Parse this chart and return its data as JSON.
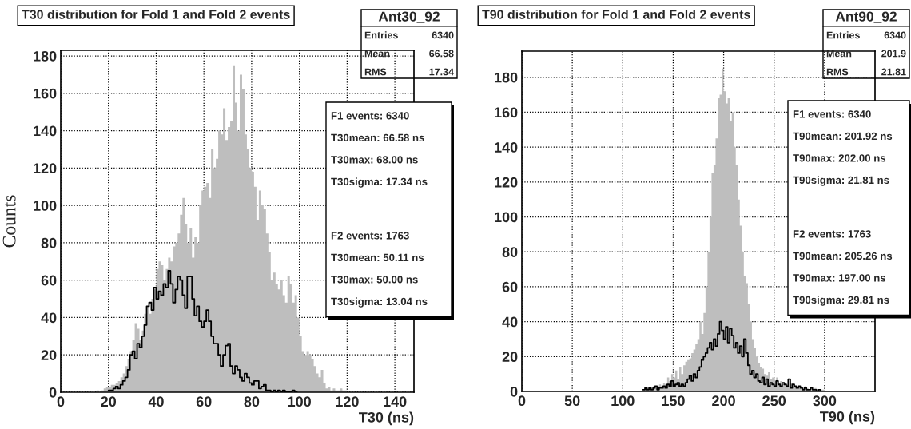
{
  "chart_data": [
    {
      "type": "histogram",
      "title": "T30 distribution for Fold 1 and Fold 2 events",
      "xlabel": "T30 (ns)",
      "ylabel": "Counts",
      "xlim": [
        0,
        148
      ],
      "ylim": [
        0,
        183
      ],
      "xticks": [
        0,
        20,
        40,
        60,
        80,
        100,
        120,
        140
      ],
      "yticks": [
        0,
        20,
        40,
        60,
        80,
        100,
        120,
        140,
        160,
        180
      ],
      "grid": true,
      "annotations": [
        "Ant30_92",
        "Entries 6340",
        "Mean 66.58",
        "RMS 17.34",
        "F1 events: 6340",
        "T30mean: 66.58 ns",
        "T30max: 68.00 ns",
        "T30sigma: 17.34 ns",
        "F2 events: 1763",
        "T30mean: 50.11 ns",
        "T30max: 50.00 ns",
        "T30sigma: 13.04 ns"
      ],
      "color": "#bebebe",
      "bins": [
        15,
        16,
        17,
        18,
        19,
        20,
        21,
        22,
        23,
        24,
        25,
        26,
        27,
        28,
        29,
        30,
        31,
        32,
        33,
        34,
        35,
        36,
        37,
        38,
        39,
        40,
        41,
        42,
        43,
        44,
        45,
        46,
        47,
        48,
        49,
        50,
        51,
        52,
        53,
        54,
        55,
        56,
        57,
        58,
        59,
        60,
        61,
        62,
        63,
        64,
        65,
        66,
        67,
        68,
        69,
        70,
        71,
        72,
        73,
        74,
        75,
        76,
        77,
        78,
        79,
        80,
        81,
        82,
        83,
        84,
        85,
        86,
        87,
        88,
        89,
        90,
        91,
        92,
        93,
        94,
        95,
        96,
        97,
        98,
        99,
        100,
        101,
        102,
        103,
        104,
        105,
        106,
        107,
        108,
        109,
        110,
        111,
        112,
        113,
        114,
        115,
        116,
        117,
        118,
        119,
        120
      ],
      "values": [
        1,
        0,
        1,
        2,
        3,
        3,
        4,
        4,
        5,
        6,
        8,
        10,
        14,
        18,
        22,
        28,
        37,
        34,
        28,
        33,
        42,
        46,
        42,
        50,
        55,
        66,
        70,
        68,
        60,
        66,
        72,
        70,
        78,
        80,
        85,
        95,
        104,
        90,
        80,
        88,
        72,
        83,
        80,
        100,
        108,
        110,
        112,
        104,
        130,
        120,
        125,
        140,
        138,
        152,
        135,
        142,
        145,
        175,
        155,
        140,
        170,
        162,
        138,
        130,
        120,
        118,
        110,
        92,
        108,
        100,
        98,
        85,
        75,
        60,
        64,
        58,
        55,
        60,
        52,
        48,
        62,
        58,
        48,
        52,
        40,
        30,
        22,
        20,
        22,
        20,
        18,
        14,
        10,
        8,
        12,
        5,
        2,
        3,
        1,
        2,
        1,
        1,
        2,
        1,
        1
      ],
      "series": [
        {
          "type": "step",
          "color": "#000000",
          "x": [
            20,
            21,
            22,
            23,
            24,
            25,
            26,
            27,
            28,
            29,
            30,
            31,
            32,
            33,
            34,
            35,
            36,
            37,
            38,
            39,
            40,
            41,
            42,
            43,
            44,
            45,
            46,
            47,
            48,
            49,
            50,
            51,
            52,
            53,
            54,
            55,
            56,
            57,
            58,
            59,
            60,
            61,
            62,
            63,
            64,
            65,
            66,
            67,
            68,
            69,
            70,
            71,
            72,
            73,
            74,
            75,
            76,
            77,
            78,
            79,
            80,
            81,
            82,
            83,
            84,
            85,
            86,
            87,
            88,
            89,
            90,
            91,
            92,
            93,
            94,
            95,
            96,
            97,
            98,
            99
          ],
          "values": [
            1,
            1,
            2,
            3,
            2,
            4,
            6,
            8,
            12,
            20,
            22,
            18,
            26,
            24,
            30,
            36,
            46,
            48,
            44,
            56,
            50,
            54,
            52,
            58,
            56,
            65,
            58,
            48,
            55,
            62,
            60,
            52,
            45,
            62,
            62,
            50,
            41,
            46,
            38,
            35,
            38,
            44,
            38,
            30,
            26,
            26,
            20,
            14,
            20,
            25,
            26,
            14,
            10,
            14,
            12,
            8,
            6,
            10,
            8,
            5,
            4,
            6,
            6,
            2,
            3,
            4,
            1,
            1,
            0,
            1,
            0,
            1,
            0,
            1,
            0,
            0,
            0,
            1,
            0,
            0
          ]
        }
      ]
    },
    {
      "type": "histogram",
      "title": "T90 distribution for Fold 1 and Fold 2 events",
      "xlabel": "T90 (ns)",
      "xlim": [
        0,
        350
      ],
      "ylim": [
        0,
        195
      ],
      "xticks": [
        0,
        50,
        100,
        150,
        200,
        250,
        300
      ],
      "yticks": [
        0,
        20,
        40,
        60,
        80,
        100,
        120,
        140,
        160,
        180
      ],
      "grid": true,
      "annotations": [
        "Ant90_92",
        "Entries 6340",
        "Mean 201.9",
        "RMS 21.81",
        "F1 events: 6340",
        "T90mean: 201.92 ns",
        "T90max: 202.00 ns",
        "T90sigma: 21.81 ns",
        "F2 events: 1763",
        "T90mean: 205.26 ns",
        "T90max: 197.00 ns",
        "T90sigma: 29.81 ns"
      ],
      "color": "#bebebe",
      "bins": [
        120,
        122,
        124,
        126,
        128,
        130,
        132,
        134,
        136,
        138,
        140,
        142,
        144,
        146,
        148,
        150,
        152,
        154,
        156,
        158,
        160,
        162,
        164,
        166,
        168,
        170,
        172,
        174,
        176,
        178,
        180,
        182,
        184,
        186,
        188,
        190,
        192,
        194,
        196,
        198,
        200,
        202,
        204,
        206,
        208,
        210,
        212,
        214,
        216,
        218,
        220,
        222,
        224,
        226,
        228,
        230,
        232,
        234,
        236,
        238,
        240,
        242,
        244,
        246,
        248,
        250,
        252,
        254,
        256,
        258,
        260,
        262,
        264,
        266,
        268,
        270,
        272,
        274,
        276,
        278,
        280,
        282,
        284,
        286,
        288,
        290,
        292,
        294,
        296,
        298,
        300
      ],
      "values": [
        1,
        1,
        2,
        1,
        2,
        3,
        2,
        3,
        4,
        3,
        5,
        4,
        8,
        6,
        10,
        8,
        12,
        7,
        14,
        10,
        15,
        17,
        18,
        19,
        22,
        24,
        27,
        30,
        40,
        33,
        45,
        60,
        80,
        100,
        125,
        130,
        145,
        168,
        170,
        185,
        172,
        165,
        168,
        155,
        160,
        140,
        130,
        110,
        95,
        80,
        66,
        62,
        50,
        40,
        30,
        25,
        20,
        16,
        14,
        13,
        10,
        9,
        11,
        7,
        8,
        6,
        8,
        5,
        6,
        4,
        5,
        4,
        3,
        5,
        4,
        3,
        2,
        3,
        2,
        2,
        3,
        2,
        1,
        2,
        1,
        2,
        1,
        1,
        1,
        1
      ],
      "series": [
        {
          "type": "step",
          "color": "#000000",
          "x": [
            120,
            122,
            124,
            126,
            128,
            130,
            132,
            134,
            136,
            138,
            140,
            142,
            144,
            146,
            148,
            150,
            152,
            154,
            156,
            158,
            160,
            162,
            164,
            166,
            168,
            170,
            172,
            174,
            176,
            178,
            180,
            182,
            184,
            186,
            188,
            190,
            192,
            194,
            196,
            198,
            200,
            202,
            204,
            206,
            208,
            210,
            212,
            214,
            216,
            218,
            220,
            222,
            224,
            226,
            228,
            230,
            232,
            234,
            236,
            238,
            240,
            242,
            244,
            246,
            248,
            250,
            252,
            254,
            256,
            258,
            260,
            262,
            264,
            266,
            268,
            270,
            272,
            274,
            276,
            278,
            280,
            282,
            284,
            286,
            288,
            290,
            292,
            294,
            296,
            298
          ],
          "values": [
            1,
            2,
            1,
            2,
            1,
            2,
            3,
            1,
            2,
            2,
            3,
            2,
            4,
            3,
            6,
            3,
            4,
            5,
            3,
            4,
            3,
            5,
            7,
            9,
            6,
            10,
            8,
            12,
            14,
            18,
            20,
            22,
            25,
            28,
            24,
            30,
            26,
            33,
            40,
            35,
            30,
            37,
            28,
            36,
            32,
            25,
            28,
            22,
            26,
            20,
            30,
            22,
            15,
            10,
            12,
            8,
            10,
            6,
            5,
            8,
            4,
            7,
            3,
            5,
            4,
            3,
            6,
            4,
            3,
            5,
            4,
            3,
            7,
            2,
            4,
            3,
            2,
            3,
            2,
            1,
            2,
            1,
            1,
            2,
            1,
            1,
            0,
            1,
            0,
            0
          ]
        }
      ]
    }
  ]
}
